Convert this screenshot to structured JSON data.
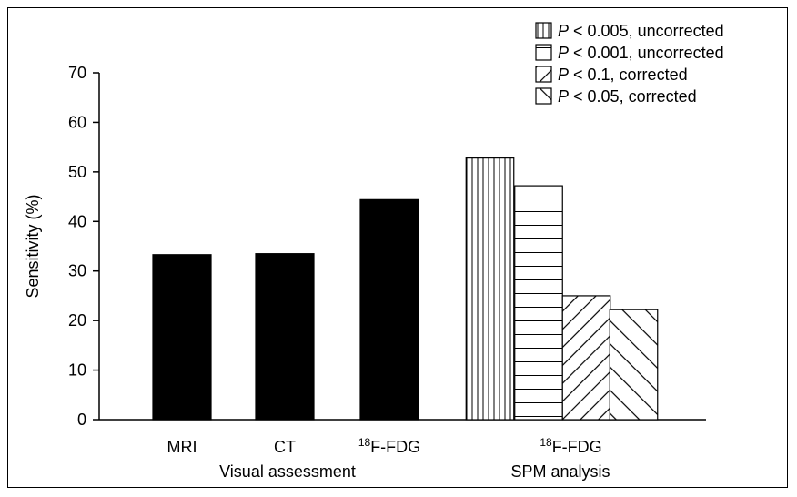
{
  "chart_data": {
    "type": "bar",
    "ylabel": "Sensitivity (%)",
    "ylim": [
      0,
      70
    ],
    "yticks": [
      0,
      10,
      20,
      30,
      40,
      50,
      60,
      70
    ],
    "groups": [
      {
        "group_label": "Visual assessment",
        "bars": [
          {
            "label": "MRI",
            "value": 33.3,
            "pattern": "solid"
          },
          {
            "label": "CT",
            "value": 33.5,
            "pattern": "solid"
          },
          {
            "label_sup": "18",
            "label": "F-FDG",
            "value": 44.4,
            "pattern": "solid"
          }
        ]
      },
      {
        "group_label": "SPM analysis",
        "category_sup": "18",
        "category_label": "F-FDG",
        "bars": [
          {
            "value": 52.8,
            "pattern": "vertical"
          },
          {
            "value": 47.2,
            "pattern": "horizontal"
          },
          {
            "value": 25.0,
            "pattern": "back-diagonal"
          },
          {
            "value": 22.2,
            "pattern": "forward-diagonal"
          }
        ]
      }
    ],
    "legend": {
      "placement": "top-right",
      "items": [
        {
          "p": "P",
          "rest": " < 0.005, uncorrected",
          "pattern": "vertical"
        },
        {
          "p": "P",
          "rest": " < 0.001, uncorrected",
          "pattern": "horizontal"
        },
        {
          "p": "P",
          "rest": " < 0.1, corrected",
          "pattern": "back-diagonal"
        },
        {
          "p": "P",
          "rest": " < 0.05, corrected",
          "pattern": "forward-diagonal"
        }
      ]
    },
    "grid": false
  }
}
